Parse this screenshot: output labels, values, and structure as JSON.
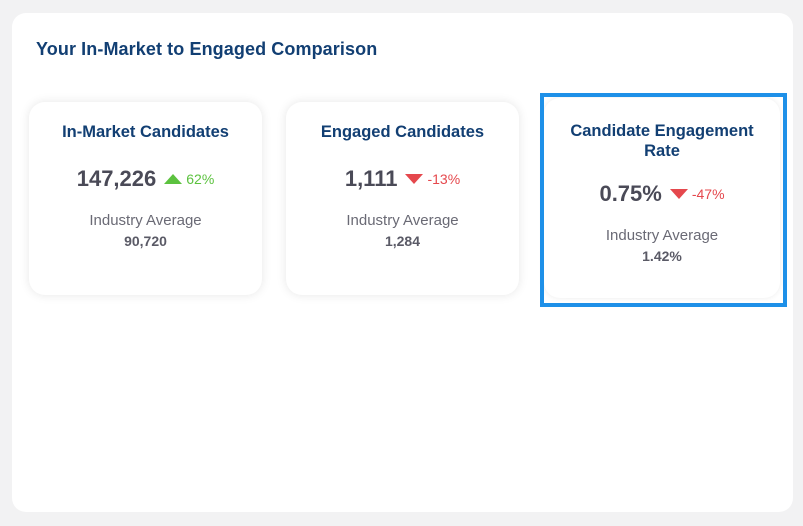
{
  "panel": {
    "title": "Your In-Market to Engaged Comparison"
  },
  "colors": {
    "title": "#123f73",
    "up": "#5cc23f",
    "down": "#e5484d",
    "selection": "#1e90e8"
  },
  "cards": [
    {
      "title": "In-Market Candidates",
      "value": "147,226",
      "trend": {
        "direction": "up",
        "icon": "triangle-up-icon",
        "label": "62%"
      },
      "avg_label": "Industry Average",
      "avg_value": "90,720"
    },
    {
      "title": "Engaged Candidates",
      "value": "1,111",
      "trend": {
        "direction": "down",
        "icon": "triangle-down-icon",
        "label": "-13%"
      },
      "avg_label": "Industry Average",
      "avg_value": "1,284"
    },
    {
      "title": "Candidate Engagement Rate",
      "value": "0.75%",
      "trend": {
        "direction": "down",
        "icon": "triangle-down-icon",
        "label": "-47%"
      },
      "avg_label": "Industry Average",
      "avg_value": "1.42%",
      "selected": true
    }
  ]
}
